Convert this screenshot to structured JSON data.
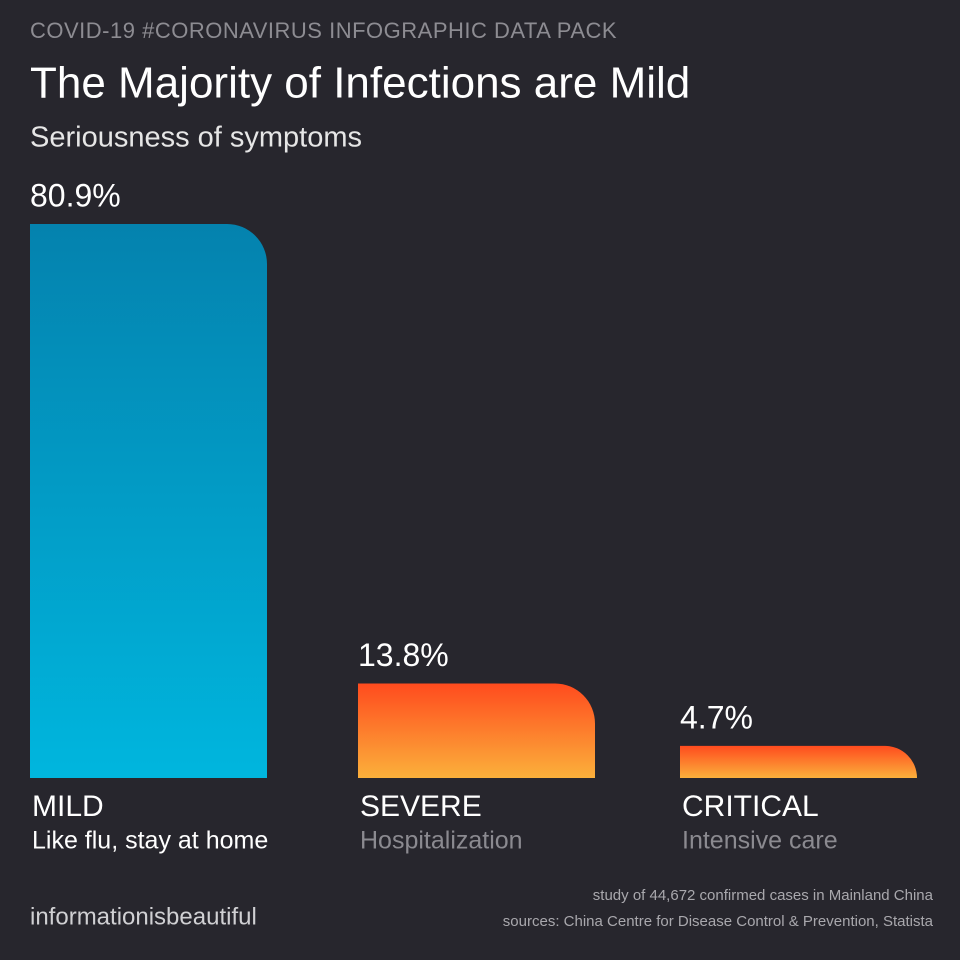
{
  "header": "COVID-19 #CORONAVIRUS INFOGRAPHIC DATA PACK",
  "chart_data": {
    "type": "bar",
    "title": "The Majority of Infections are Mild",
    "subtitle": "Seriousness of symptoms",
    "categories": [
      "MILD",
      "SEVERE",
      "CRITICAL"
    ],
    "category_notes": [
      "Like flu, stay at home",
      "Hospitalization",
      "Intensive care"
    ],
    "values": [
      80.9,
      13.8,
      4.7
    ],
    "value_labels": [
      "80.9%",
      "13.8%",
      "4.7%"
    ],
    "colors": [
      "#0482ae",
      "#ff4b1e",
      "#ff4b1e"
    ],
    "colors_bottom": [
      "#00b6de",
      "#fbb03b",
      "#fbb03b"
    ]
  },
  "footer": {
    "notes": [
      "study of 44,672 confirmed cases in Mainland China",
      "sources: China Centre for Disease Control & Prevention, Statista"
    ],
    "brand": "informationisbeautiful"
  }
}
